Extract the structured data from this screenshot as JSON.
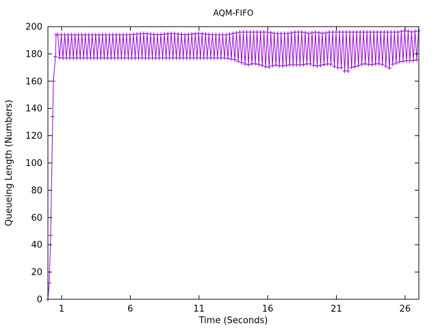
{
  "chart_data": {
    "type": "line",
    "title": "AQM-FIFO",
    "xlabel": "Time (Seconds)",
    "ylabel": "Queueing Length (Numbers)",
    "xlim": [
      0,
      27
    ],
    "ylim": [
      0,
      200
    ],
    "xticks": [
      1,
      6,
      11,
      16,
      21,
      26
    ],
    "yticks": [
      0,
      20,
      40,
      60,
      80,
      100,
      120,
      140,
      160,
      180,
      200
    ],
    "grid": false,
    "legend": "none",
    "marker": "plus",
    "series": [
      {
        "color": "#9400d3",
        "x": [
          0,
          0.1,
          0.2,
          0.35,
          0.4,
          0.55,
          0.6,
          0.7,
          0.9,
          1.0,
          1.1,
          1.3,
          1.6,
          2.0,
          2.5,
          3.0,
          3.5,
          4.0,
          4.5,
          5.0,
          5.5,
          6.0,
          7.0,
          8.0,
          9.0,
          10.0,
          11.0,
          12.0,
          13.0,
          13.5,
          14.0,
          14.5,
          15.0,
          15.5,
          16.0,
          16.5,
          17.0,
          17.5,
          18.0,
          18.5,
          19.0,
          19.5,
          20.0,
          20.5,
          21.0,
          21.5,
          21.7,
          22.0,
          22.5,
          23.0,
          23.5,
          24.0,
          24.5,
          24.8,
          25.0,
          25.5,
          26.0,
          26.5,
          27.0
        ],
        "y": [
          0,
          12,
          47,
          134,
          160,
          178,
          194,
          180,
          192,
          178,
          190,
          183,
          188,
          186,
          189,
          185,
          188,
          186,
          188,
          186,
          189,
          187,
          188,
          186,
          189,
          186,
          188,
          185,
          187,
          185,
          184,
          186,
          183,
          185,
          184,
          186,
          182,
          187,
          184,
          186,
          183,
          187,
          184,
          185,
          182,
          184,
          166,
          176,
          183,
          186,
          181,
          186,
          182,
          169,
          178,
          184,
          186,
          183,
          187
        ]
      }
    ],
    "band_min": [
      0,
      12,
      47,
      134,
      160,
      178,
      178,
      178,
      177,
      177,
      177,
      177,
      177,
      177,
      177,
      177,
      177,
      177,
      177,
      177,
      177,
      177,
      177,
      177,
      177,
      177,
      177,
      177,
      177,
      176,
      174,
      172,
      173,
      172,
      170,
      172,
      171,
      172,
      172,
      172,
      173,
      171,
      172,
      173,
      170,
      170,
      165,
      170,
      171,
      173,
      172,
      173,
      172,
      169,
      172,
      174,
      175,
      175,
      176
    ],
    "band_max": [
      0,
      12,
      47,
      134,
      160,
      178,
      194,
      194,
      194,
      194,
      194,
      194,
      194,
      194,
      194,
      194,
      194,
      194,
      194,
      194,
      194,
      194,
      195,
      194,
      195,
      194,
      195,
      194,
      194,
      195,
      196,
      196,
      196,
      196,
      196,
      195,
      195,
      195,
      196,
      196,
      195,
      196,
      195,
      196,
      196,
      196,
      196,
      196,
      196,
      196,
      196,
      196,
      196,
      196,
      196,
      196,
      197,
      196,
      197
    ]
  }
}
